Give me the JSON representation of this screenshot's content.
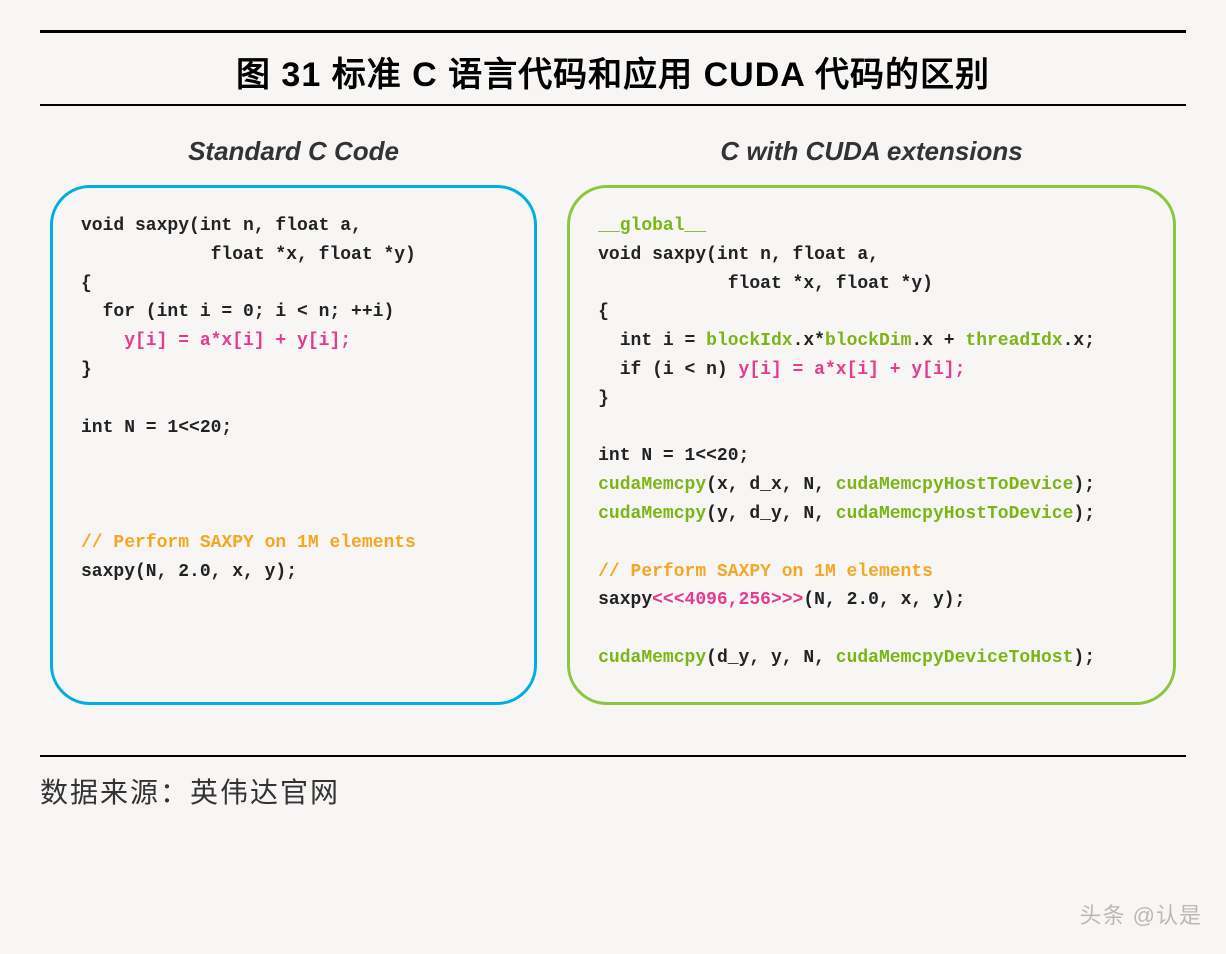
{
  "title": "图 31 标准 C 语言代码和应用 CUDA 代码的区别",
  "footer": "数据来源：英伟达官网",
  "watermark": "头条 @认是",
  "left": {
    "heading": "Standard C Code",
    "border_color": "#00aee6",
    "lines": [
      [
        {
          "t": "void saxpy(int n, float a,",
          "c": "default"
        }
      ],
      [
        {
          "t": "            float *x, float *y)",
          "c": "default"
        }
      ],
      [
        {
          "t": "{",
          "c": "default"
        }
      ],
      [
        {
          "t": "  for (int i = 0; i < n; ++i)",
          "c": "default"
        }
      ],
      [
        {
          "t": "    y[i] = a*x[i] + y[i];",
          "c": "pink"
        }
      ],
      [
        {
          "t": "}",
          "c": "default"
        }
      ],
      [
        {
          "t": "",
          "c": "default"
        }
      ],
      [
        {
          "t": "int N = 1<<20;",
          "c": "default"
        }
      ],
      [
        {
          "t": "",
          "c": "default"
        }
      ],
      [
        {
          "t": "",
          "c": "default"
        }
      ],
      [
        {
          "t": "",
          "c": "default"
        }
      ],
      [
        {
          "t": "// Perform SAXPY on 1M elements",
          "c": "orange"
        }
      ],
      [
        {
          "t": "saxpy(N, 2.0, x, y);",
          "c": "default"
        }
      ]
    ]
  },
  "right": {
    "heading": "C with CUDA extensions",
    "border_color": "#8cc63f",
    "lines": [
      [
        {
          "t": "__global__",
          "c": "green"
        }
      ],
      [
        {
          "t": "void saxpy(int n, float a,",
          "c": "default"
        }
      ],
      [
        {
          "t": "            float *x, float *y)",
          "c": "default"
        }
      ],
      [
        {
          "t": "{",
          "c": "default"
        }
      ],
      [
        {
          "t": "  int i = ",
          "c": "default"
        },
        {
          "t": "blockIdx",
          "c": "green"
        },
        {
          "t": ".x*",
          "c": "default"
        },
        {
          "t": "blockDim",
          "c": "green"
        },
        {
          "t": ".x + ",
          "c": "default"
        },
        {
          "t": "threadIdx",
          "c": "green"
        },
        {
          "t": ".x;",
          "c": "default"
        }
      ],
      [
        {
          "t": "  if (i < n) ",
          "c": "default"
        },
        {
          "t": "y[i] = a*x[i] + y[i];",
          "c": "pink"
        }
      ],
      [
        {
          "t": "}",
          "c": "default"
        }
      ],
      [
        {
          "t": "",
          "c": "default"
        }
      ],
      [
        {
          "t": "int N = 1<<20;",
          "c": "default"
        }
      ],
      [
        {
          "t": "cudaMemcpy",
          "c": "green"
        },
        {
          "t": "(x, d_x, N, ",
          "c": "default"
        },
        {
          "t": "cudaMemcpyHostToDevice",
          "c": "green"
        },
        {
          "t": ");",
          "c": "default"
        }
      ],
      [
        {
          "t": "cudaMemcpy",
          "c": "green"
        },
        {
          "t": "(y, d_y, N, ",
          "c": "default"
        },
        {
          "t": "cudaMemcpyHostToDevice",
          "c": "green"
        },
        {
          "t": ");",
          "c": "default"
        }
      ],
      [
        {
          "t": "",
          "c": "default"
        }
      ],
      [
        {
          "t": "// Perform SAXPY on 1M elements",
          "c": "orange"
        }
      ],
      [
        {
          "t": "saxpy",
          "c": "default"
        },
        {
          "t": "<<<4096,256>>>",
          "c": "pink"
        },
        {
          "t": "(N, 2.0, x, y);",
          "c": "default"
        }
      ],
      [
        {
          "t": "",
          "c": "default"
        }
      ],
      [
        {
          "t": "cudaMemcpy",
          "c": "green"
        },
        {
          "t": "(d_y, y, N, ",
          "c": "default"
        },
        {
          "t": "cudaMemcpyDeviceToHost",
          "c": "green"
        },
        {
          "t": ");",
          "c": "default"
        }
      ]
    ]
  },
  "colors": {
    "default": "#222222",
    "green": "#7cb518",
    "pink": "#e6398f",
    "orange": "#f5a623"
  }
}
